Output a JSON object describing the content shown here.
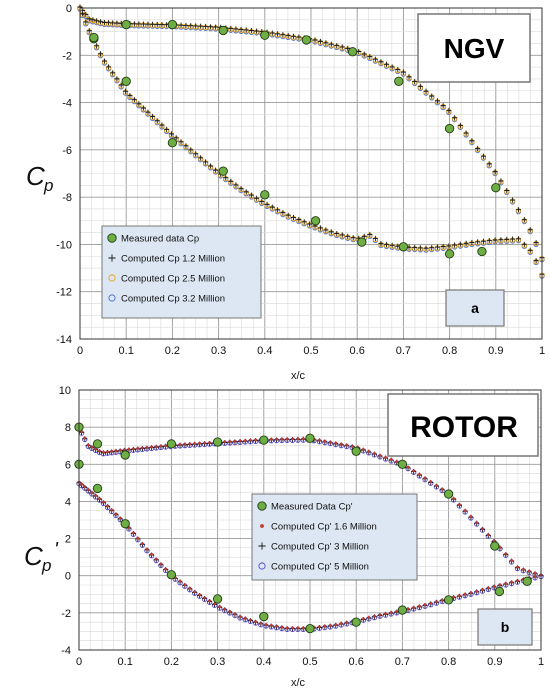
{
  "chart_data": [
    {
      "type": "scatter",
      "panel_tag": "NGV",
      "panel_letter": "a",
      "xlabel": "x/c",
      "ylabel": "Cp",
      "xlim": [
        0,
        1
      ],
      "ylim": [
        -14,
        0
      ],
      "x_ticks": [
        "0",
        "0.1",
        "0.2",
        "0.3",
        "0.4",
        "0.5",
        "0.6",
        "0.7",
        "0.8",
        "0.9",
        "1"
      ],
      "y_ticks": [
        "0",
        "-2",
        "-4",
        "-6",
        "-8",
        "-10",
        "-12",
        "-14"
      ],
      "grid": true,
      "legend_position": "lower-left",
      "series": [
        {
          "name": "Measured data  Cp",
          "marker": "circle-filled",
          "color": "#6fae45",
          "x": [
            0.03,
            0.1,
            0.2,
            0.31,
            0.4,
            0.49,
            0.59,
            0.69,
            0.8,
            0.9,
            0.03,
            0.1,
            0.2,
            0.31,
            0.4,
            0.51,
            0.61,
            0.7,
            0.8,
            0.87
          ],
          "y": [
            -1.3,
            -0.7,
            -0.7,
            -0.95,
            -1.15,
            -1.35,
            -1.85,
            -3.1,
            -5.1,
            -7.6,
            -1.25,
            -3.1,
            -5.7,
            -6.9,
            -7.9,
            -9.0,
            -9.9,
            -10.1,
            -10.4,
            -10.3
          ]
        },
        {
          "name": "Computed Cp 1.2 Million",
          "marker": "plus",
          "color": "#1a1a1a",
          "upper": {
            "x": [
              0.0,
              0.02,
              0.05,
              0.1,
              0.2,
              0.3,
              0.4,
              0.5,
              0.6,
              0.7,
              0.8,
              0.9,
              0.95,
              0.98,
              1.0
            ],
            "y": [
              0.0,
              -0.5,
              -0.65,
              -0.7,
              -0.75,
              -0.85,
              -1.05,
              -1.35,
              -1.85,
              -2.75,
              -4.4,
              -7.0,
              -8.6,
              -9.6,
              -10.6
            ]
          },
          "lower": {
            "x": [
              0.0,
              0.02,
              0.05,
              0.1,
              0.15,
              0.2,
              0.25,
              0.3,
              0.35,
              0.4,
              0.45,
              0.5,
              0.55,
              0.6,
              0.63,
              0.65,
              0.7,
              0.75,
              0.8,
              0.85,
              0.9,
              0.95,
              0.98,
              1.0
            ],
            "y": [
              0.0,
              -1.0,
              -2.2,
              -3.6,
              -4.5,
              -5.4,
              -6.2,
              -7.0,
              -7.7,
              -8.3,
              -8.8,
              -9.2,
              -9.55,
              -9.8,
              -9.6,
              -10.0,
              -10.15,
              -10.2,
              -10.1,
              -9.95,
              -9.85,
              -9.8,
              -10.4,
              -11.3
            ]
          }
        },
        {
          "name": "Computed Cp 2.5 Million",
          "marker": "circle-open",
          "color": "#e8a317"
        },
        {
          "name": "Computed Cp 3.2 Million",
          "marker": "circle-open",
          "color": "#4a6fd0"
        }
      ]
    },
    {
      "type": "scatter",
      "panel_tag": "ROTOR",
      "panel_letter": "b",
      "xlabel": "x/c",
      "ylabel": "Cp'",
      "xlim": [
        0,
        1
      ],
      "ylim": [
        -4,
        10
      ],
      "x_ticks": [
        "0",
        "0.1",
        "0.2",
        "0.3",
        "0.4",
        "0.5",
        "0.6",
        "0.7",
        "0.8",
        "0.9",
        "1"
      ],
      "y_ticks": [
        "10",
        "8",
        "6",
        "4",
        "2",
        "0",
        "-2",
        "-4"
      ],
      "grid": true,
      "legend_position": "center-right",
      "series": [
        {
          "name": "Measured Data Cp'",
          "marker": "circle-filled",
          "color": "#6fae45",
          "x": [
            0.0,
            0.0,
            0.04,
            0.1,
            0.2,
            0.3,
            0.4,
            0.5,
            0.6,
            0.7,
            0.8,
            0.9,
            0.04,
            0.1,
            0.2,
            0.3,
            0.4,
            0.5,
            0.6,
            0.7,
            0.8,
            0.91,
            0.97
          ],
          "y": [
            8.0,
            6.0,
            7.1,
            6.5,
            7.1,
            7.2,
            7.3,
            7.4,
            6.7,
            6.0,
            4.4,
            1.6,
            4.7,
            2.8,
            0.05,
            -1.25,
            -2.2,
            -2.85,
            -2.5,
            -1.85,
            -1.3,
            -0.85,
            -0.3
          ]
        },
        {
          "name": "Computed Cp' 1.6 Million",
          "marker": "dot",
          "color": "#c0392b",
          "upper": {
            "x": [
              0.0,
              0.02,
              0.05,
              0.1,
              0.2,
              0.3,
              0.4,
              0.5,
              0.6,
              0.7,
              0.8,
              0.9,
              0.95,
              1.0
            ],
            "y": [
              8.0,
              7.0,
              6.6,
              6.75,
              7.0,
              7.15,
              7.3,
              7.35,
              6.9,
              6.0,
              4.4,
              1.8,
              0.4,
              0.0
            ]
          },
          "lower": {
            "x": [
              0.0,
              0.02,
              0.05,
              0.1,
              0.15,
              0.2,
              0.25,
              0.3,
              0.35,
              0.4,
              0.45,
              0.5,
              0.55,
              0.6,
              0.65,
              0.7,
              0.75,
              0.8,
              0.85,
              0.9,
              0.95,
              1.0
            ],
            "y": [
              5.0,
              4.6,
              4.0,
              2.8,
              1.3,
              0.0,
              -0.9,
              -1.65,
              -2.25,
              -2.65,
              -2.85,
              -2.85,
              -2.7,
              -2.45,
              -2.15,
              -1.9,
              -1.6,
              -1.25,
              -0.95,
              -0.6,
              -0.3,
              0.0
            ]
          }
        },
        {
          "name": "Computed Cp' 3 Million",
          "marker": "plus",
          "color": "#1a1a1a"
        },
        {
          "name": "Computed Cp' 5 Million",
          "marker": "circle-open",
          "color": "#5b4bc4"
        }
      ]
    }
  ]
}
